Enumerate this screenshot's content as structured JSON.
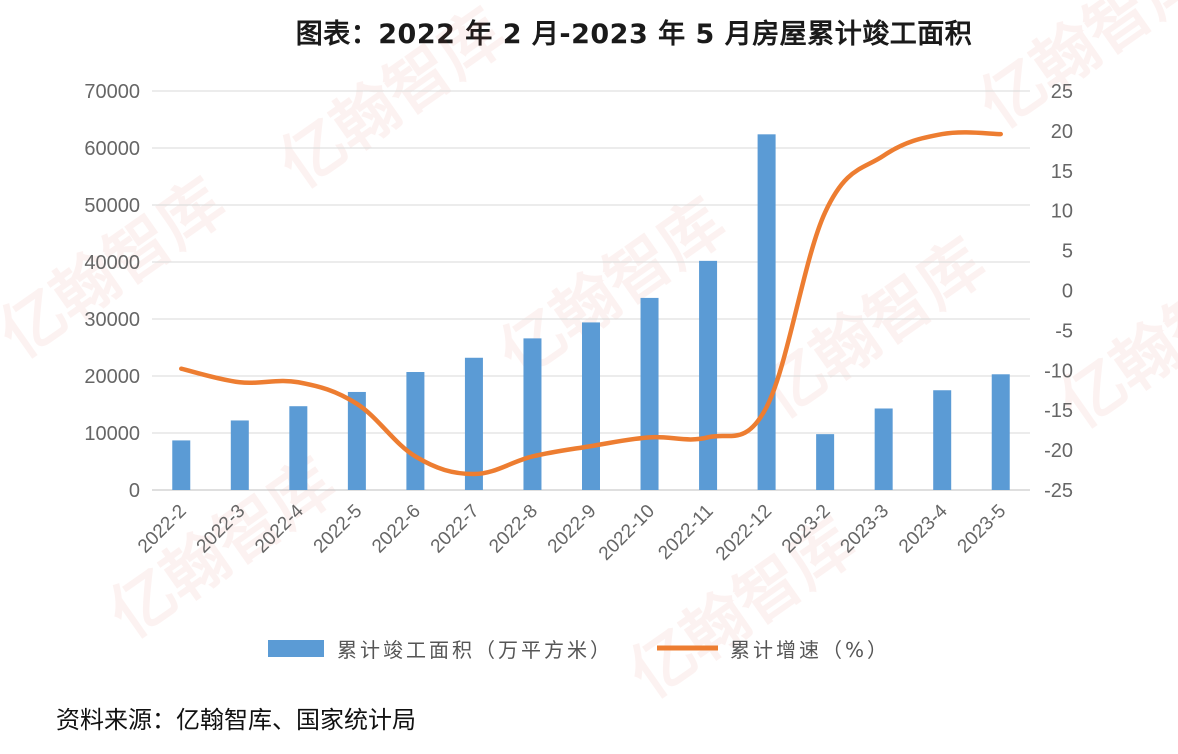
{
  "title": "图表：2022 年 2 月-2023 年 5 月房屋累计竣工面积",
  "source": "资料来源：亿翰智库、国家统计局",
  "watermark": "亿翰智库",
  "colors": {
    "bar": "#5b9bd5",
    "line": "#ed7d31",
    "grid": "#d9d9d9"
  },
  "chart_data": {
    "type": "bar",
    "categories": [
      "2022-2",
      "2022-3",
      "2022-4",
      "2022-5",
      "2022-6",
      "2022-7",
      "2022-8",
      "2022-9",
      "2022-10",
      "2022-11",
      "2022-12",
      "2023-2",
      "2023-3",
      "2023-4",
      "2023-5"
    ],
    "series": [
      {
        "name": "累计竣工面积（万平方米）",
        "type": "bar",
        "axis": "left",
        "values": [
          8700,
          12200,
          14700,
          17200,
          20700,
          23200,
          26600,
          29400,
          33700,
          40200,
          62400,
          9800,
          14300,
          17500,
          20300
        ]
      },
      {
        "name": "累计增速（%）",
        "type": "line",
        "axis": "right",
        "values": [
          -9.8,
          -11.5,
          -11.5,
          -14.2,
          -20.8,
          -23.0,
          -20.8,
          -19.5,
          -18.4,
          -18.4,
          -14.6,
          9.8,
          16.9,
          19.6,
          19.6
        ]
      }
    ],
    "yleft": {
      "min": 0,
      "max": 70000,
      "step": 10000,
      "ticks": [
        "0",
        "10000",
        "20000",
        "30000",
        "40000",
        "50000",
        "60000",
        "70000"
      ]
    },
    "yright": {
      "min": -25,
      "max": 25,
      "step": 5,
      "ticks": [
        "-25",
        "-20",
        "-15",
        "-10",
        "-5",
        "0",
        "5",
        "10",
        "15",
        "20",
        "25"
      ]
    },
    "grid": true,
    "legend": "bottom"
  }
}
